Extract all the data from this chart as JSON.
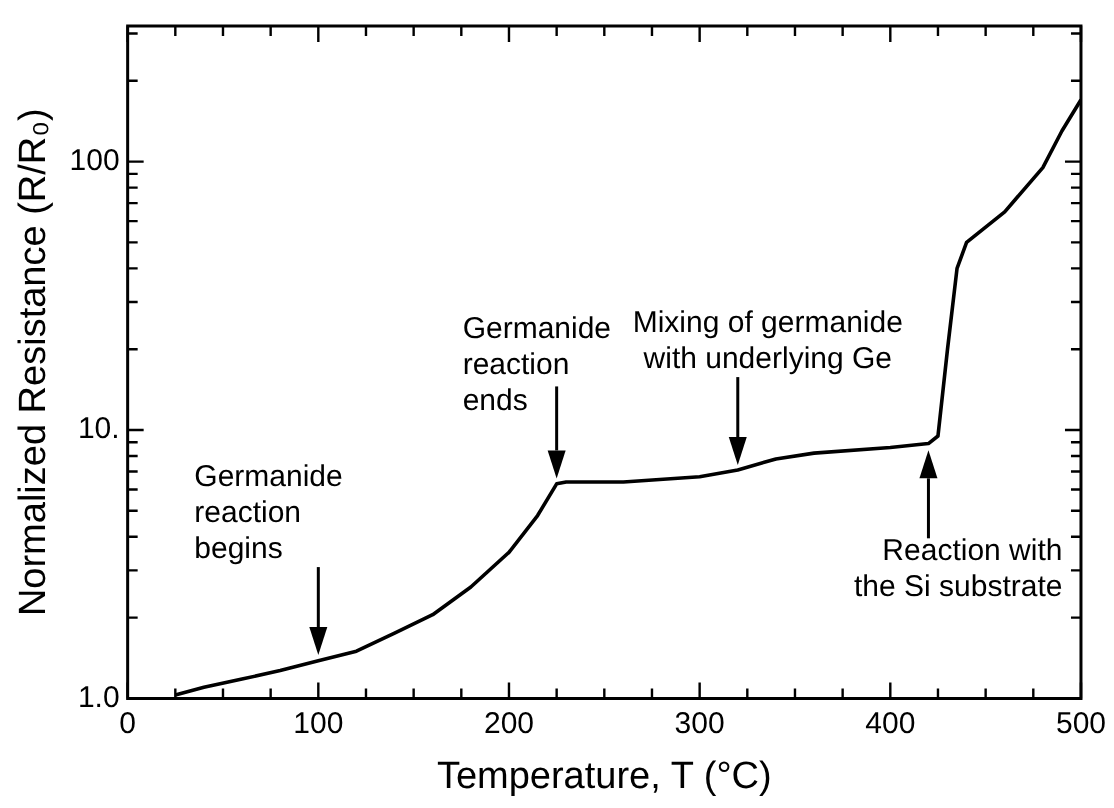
{
  "chart_data": {
    "type": "line",
    "xlabel": "Temperature, T (°C)",
    "ylabel": "Normalized Resistance (R/R₀)",
    "log": "y",
    "grid": false,
    "legend": false,
    "marker": "none",
    "line_style": "solid",
    "xlim": [
      0,
      500
    ],
    "ylim": [
      1,
      320
    ],
    "xticks": [
      0,
      {
        "value": 25,
        "label": null
      },
      {
        "value": 50,
        "label": null
      },
      {
        "value": 75,
        "label": null
      },
      100,
      {
        "value": 125,
        "label": null
      },
      {
        "value": 150,
        "label": null
      },
      {
        "value": 175,
        "label": null
      },
      200,
      {
        "value": 225,
        "label": null
      },
      {
        "value": 250,
        "label": null
      },
      {
        "value": 275,
        "label": null
      },
      300,
      {
        "value": 325,
        "label": null
      },
      {
        "value": 350,
        "label": null
      },
      {
        "value": 375,
        "label": null
      },
      400,
      {
        "value": 425,
        "label": null
      },
      {
        "value": 450,
        "label": null
      },
      {
        "value": 475,
        "label": null
      },
      500
    ],
    "yticks": [
      {
        "value": 1,
        "label": "1.0"
      },
      {
        "value": 2,
        "label": null
      },
      {
        "value": 3,
        "label": null
      },
      {
        "value": 4,
        "label": null
      },
      {
        "value": 5,
        "label": null
      },
      {
        "value": 6,
        "label": null
      },
      {
        "value": 7,
        "label": null
      },
      {
        "value": 8,
        "label": null
      },
      {
        "value": 9,
        "label": null
      },
      {
        "value": 10,
        "label": "10."
      },
      {
        "value": 20,
        "label": null
      },
      {
        "value": 30,
        "label": null
      },
      {
        "value": 40,
        "label": null
      },
      {
        "value": 50,
        "label": null
      },
      {
        "value": 60,
        "label": null
      },
      {
        "value": 70,
        "label": null
      },
      {
        "value": 80,
        "label": null
      },
      {
        "value": 90,
        "label": null
      },
      100,
      {
        "value": 200,
        "label": null
      },
      {
        "value": 300,
        "label": null
      }
    ],
    "series": [
      {
        "color": "#000000",
        "x": [
          25,
          40,
          60,
          80,
          100,
          120,
          140,
          160,
          180,
          200,
          215,
          225,
          230,
          260,
          300,
          320,
          340,
          360,
          400,
          420,
          425,
          430,
          435,
          440,
          460,
          480,
          490,
          500
        ],
        "values": [
          1.03,
          1.1,
          1.18,
          1.27,
          1.38,
          1.5,
          1.75,
          2.05,
          2.6,
          3.5,
          4.8,
          6.3,
          6.4,
          6.4,
          6.7,
          7.1,
          7.8,
          8.2,
          8.6,
          8.9,
          9.5,
          20,
          40,
          50,
          65,
          95,
          130,
          170
        ]
      }
    ],
    "annotations": [
      {
        "text": "Germanide\nreaction\nbegins",
        "x": 100,
        "y": 1.45
      },
      {
        "text": "Germanide\nreaction\nends",
        "x": 225,
        "y": 6.6
      },
      {
        "text": "Mixing of germanide\nwith underlying Ge",
        "x": 320,
        "y": 7.4
      },
      {
        "text": "Reaction with\nthe Si substrate",
        "x": 420,
        "y": 8.4
      }
    ]
  }
}
